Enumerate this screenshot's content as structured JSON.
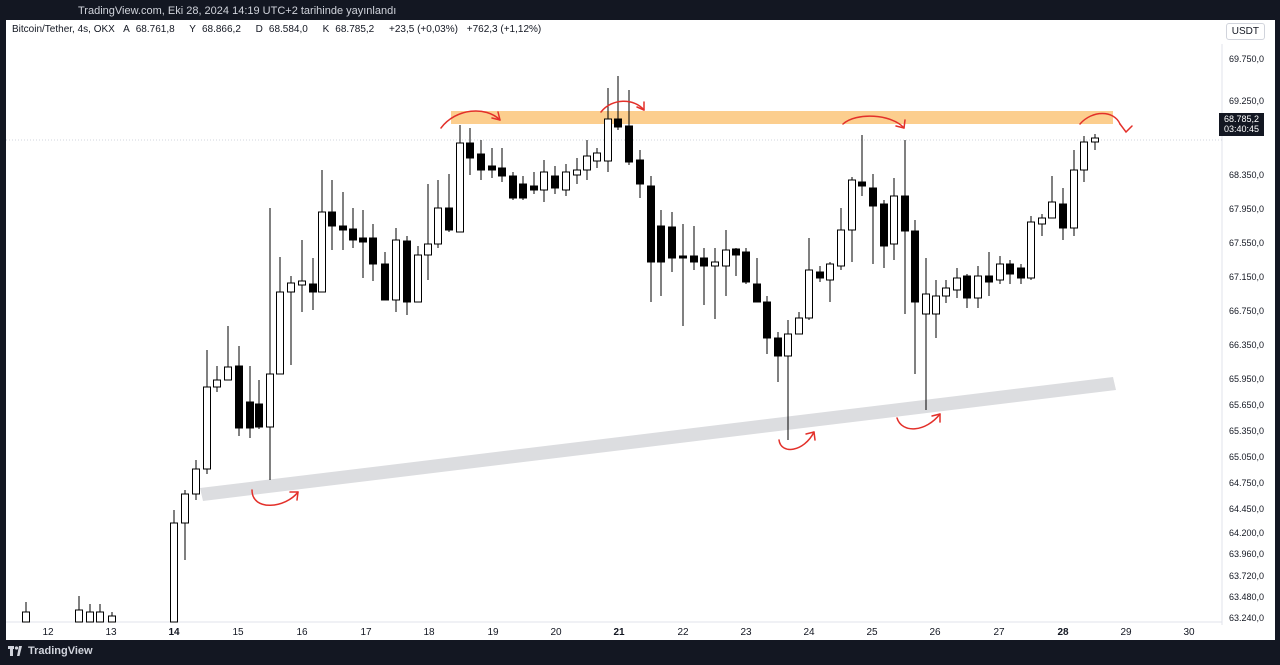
{
  "header": {
    "published": "TradingView.com, Eki 28, 2024 14:19 UTC+2 tarihinde yayınlandı"
  },
  "legend": {
    "symbol": "Bitcoin/Tether, 4s, OKX",
    "open_label": "A",
    "open": "68.761,8",
    "high_label": "Y",
    "high": "68.866,2",
    "low_label": "D",
    "low": "68.584,0",
    "close_label": "K",
    "close": "68.785,2",
    "change": "+23,5 (+0,03%)",
    "change2": "+762,3 (+1,12%)"
  },
  "currency": "USDT",
  "last_price": {
    "value": "68.785,2",
    "countdown": "03:40:45"
  },
  "footer": {
    "brand": "TradingView"
  },
  "colors": {
    "resistance_zone": "#fbc67a",
    "support_trendline": "#dcdde0",
    "annotation": "#e3302a",
    "candle_body_down": "#000000",
    "candle_body_up": "#ffffff"
  },
  "chart_data": {
    "type": "candlestick",
    "y_axis_labels": [
      "69.750,0",
      "69.250,0",
      "68.350,0",
      "67.950,0",
      "67.550,0",
      "67.150,0",
      "66.750,0",
      "66.350,0",
      "65.950,0",
      "65.650,0",
      "65.350,0",
      "65.050,0",
      "64.750,0",
      "64.450,0",
      "64.200,0",
      "63.960,0",
      "63.720,0",
      "63.480,0",
      "63.240,0"
    ],
    "x_axis_labels": [
      "12",
      "13",
      "14",
      "15",
      "16",
      "17",
      "18",
      "19",
      "20",
      "21",
      "22",
      "23",
      "24",
      "25",
      "26",
      "27",
      "28",
      "29",
      "30"
    ],
    "x_axis_bold": [
      "14",
      "21",
      "28"
    ],
    "annotations": [
      "resistance zone (orange band)",
      "rising support trendline (grey band)",
      "red hand-drawn bounce arrows"
    ]
  }
}
